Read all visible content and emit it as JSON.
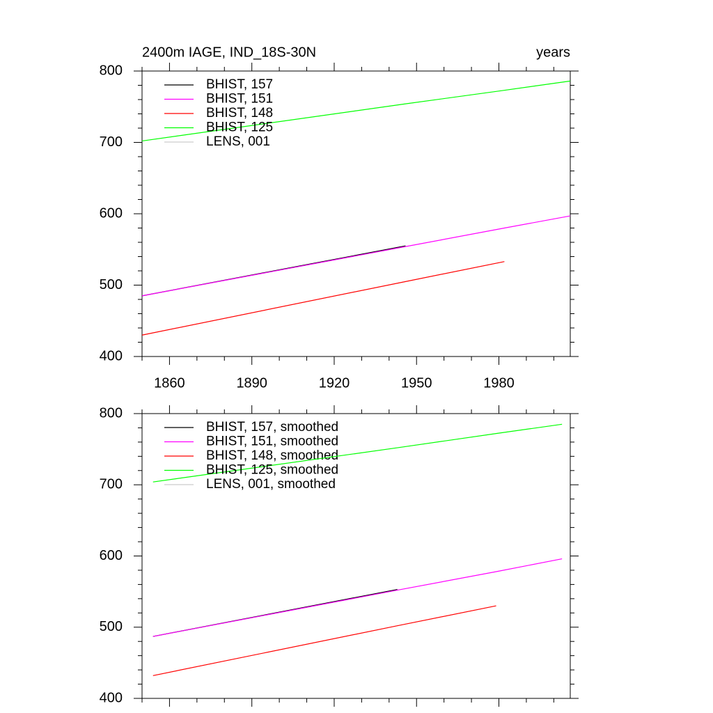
{
  "chart_data": [
    {
      "type": "line",
      "title": "2400m IAGE, IND_18S-30N",
      "subtitle": "years",
      "x": [
        1850,
        1946,
        1982,
        2006
      ],
      "series": [
        {
          "name": "BHIST, 157",
          "color": "#000000",
          "values": [
            485,
            555,
            null,
            null
          ]
        },
        {
          "name": "BHIST, 151",
          "color": "#ff00ff",
          "values": [
            485,
            554,
            580,
            597
          ]
        },
        {
          "name": "BHIST, 148",
          "color": "#ff0000",
          "values": [
            430,
            505,
            533,
            null
          ]
        },
        {
          "name": "BHIST, 125",
          "color": "#00ff00",
          "values": [
            702,
            754,
            773,
            786
          ]
        },
        {
          "name": "LENS, 001",
          "color": "#cccccc",
          "values": [
            null,
            null,
            null,
            null
          ]
        }
      ],
      "xlim": [
        1850,
        2006
      ],
      "xticks": [
        1860,
        1890,
        1920,
        1950,
        1980
      ],
      "show_xtick_labels": true,
      "ylim": [
        400,
        800
      ],
      "yticks": [
        400,
        500,
        600,
        700,
        800
      ],
      "legend": "upper left"
    },
    {
      "type": "line",
      "x": [
        1854,
        1943,
        1979,
        2003
      ],
      "series": [
        {
          "name": "BHIST, 157, smoothed",
          "color": "#000000",
          "values": [
            487,
            553,
            null,
            null
          ]
        },
        {
          "name": "BHIST, 151, smoothed",
          "color": "#ff00ff",
          "values": [
            487,
            552,
            578,
            596
          ]
        },
        {
          "name": "BHIST, 148, smoothed",
          "color": "#ff0000",
          "values": [
            432,
            502,
            530,
            null
          ]
        },
        {
          "name": "BHIST, 125, smoothed",
          "color": "#00ff00",
          "values": [
            704,
            752,
            772,
            785
          ]
        },
        {
          "name": "LENS, 001, smoothed",
          "color": "#cccccc",
          "values": [
            null,
            null,
            null,
            null
          ]
        }
      ],
      "xlim": [
        1850,
        2006
      ],
      "xticks": [
        1860,
        1890,
        1920,
        1950,
        1980
      ],
      "show_xtick_labels": false,
      "ylim": [
        400,
        800
      ],
      "yticks": [
        400,
        500,
        600,
        700,
        800
      ],
      "legend": "upper left"
    }
  ]
}
